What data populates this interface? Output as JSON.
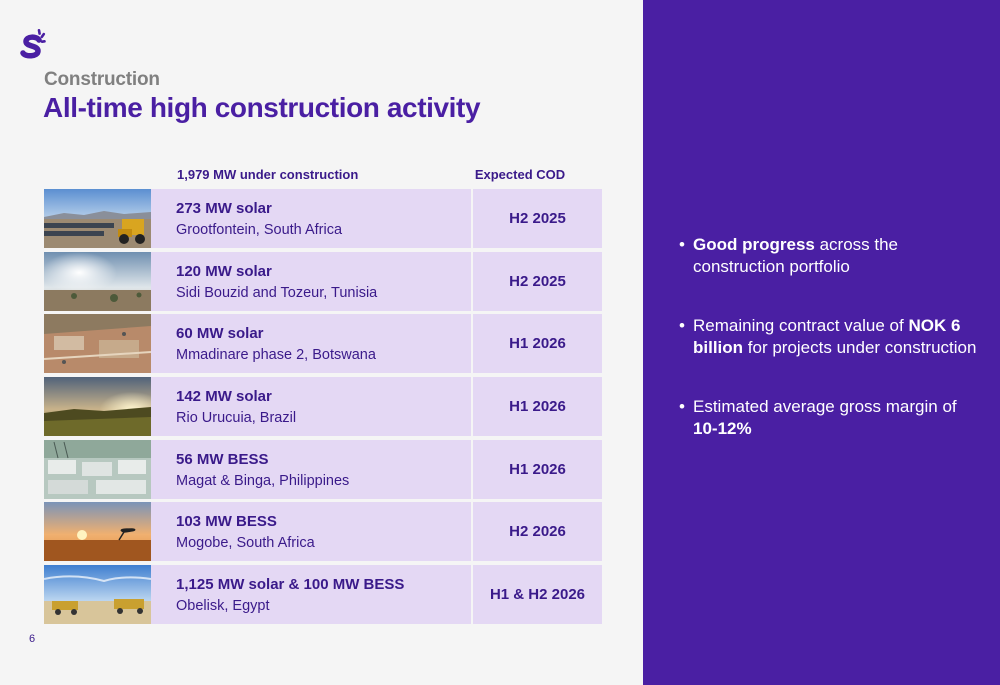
{
  "header": {
    "eyebrow": "Construction",
    "title": "All-time high construction activity"
  },
  "table": {
    "col_mw": "1,979 MW under construction",
    "col_cod": "Expected COD",
    "rows": [
      {
        "name": "273 MW solar",
        "location": "Grootfontein, South Africa",
        "cod": "H2 2025",
        "image": "solar-site-with-loader-photo"
      },
      {
        "name": "120 MW solar",
        "location": "Sidi Bouzid and Tozeur, Tunisia",
        "cod": "H2 2025",
        "image": "desert-sunrise-photo"
      },
      {
        "name": "60 MW solar",
        "location": "Mmadinare phase 2, Botswana",
        "cod": "H1 2026",
        "image": "aerial-construction-site-photo"
      },
      {
        "name": "142 MW solar",
        "location": "Rio Urucuia, Brazil",
        "cod": "H1 2026",
        "image": "grassland-sunset-photo"
      },
      {
        "name": "56 MW BESS",
        "location": "Magat & Binga, Philippines",
        "cod": "H1 2026",
        "image": "battery-storage-site-photo"
      },
      {
        "name": "103 MW BESS",
        "location": "Mogobe, South Africa",
        "cod": "H2 2026",
        "image": "savanna-sunset-photo"
      },
      {
        "name": "1,125 MW solar & 100 MW BESS",
        "location": "Obelisk, Egypt",
        "cod": "H1 & H2 2026",
        "image": "desert-graders-photo"
      }
    ]
  },
  "panel": {
    "bullets": [
      {
        "bold": "Good progress",
        "text": " across the construction portfolio"
      },
      {
        "text_before": "Remaining contract value of ",
        "bold": "NOK 6 billion",
        "text": " for projects under construction"
      },
      {
        "text_before": "Estimated average gross margin of ",
        "bold": "10-12%"
      }
    ]
  },
  "page_number": "6",
  "colors": {
    "brand_purple": "#4a1fa3",
    "row_fill": "#e4d8f4",
    "text_dark": "#3a1a8a",
    "eyebrow_gray": "#808080"
  }
}
